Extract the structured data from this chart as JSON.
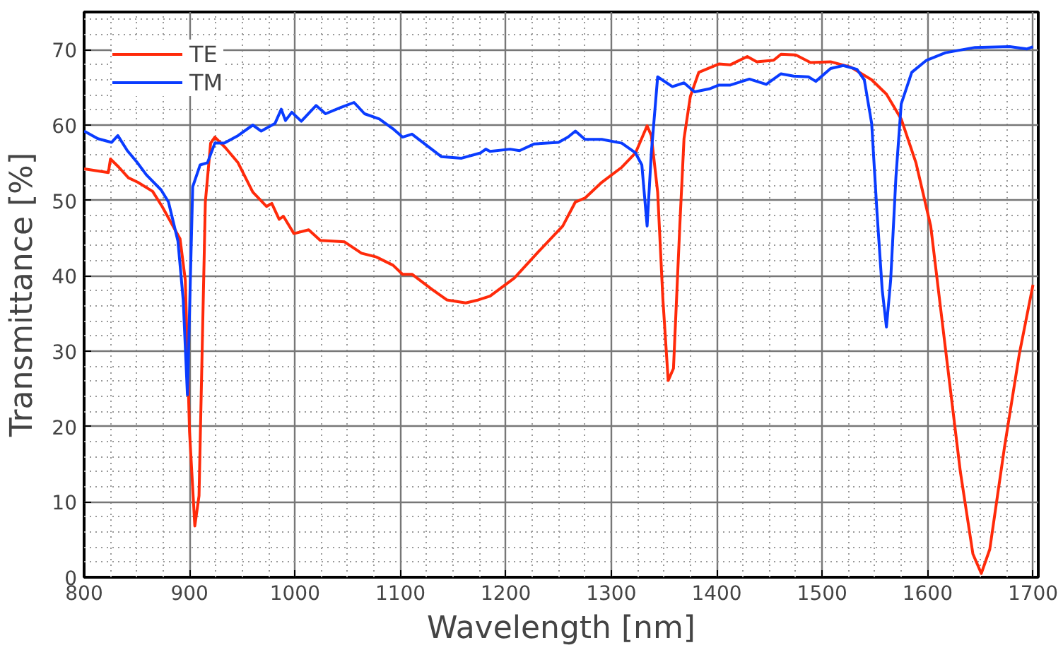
{
  "chart_data": {
    "type": "line",
    "xlabel": "Wavelength [nm]",
    "ylabel": "Transmittance [%]",
    "xlim": [
      800,
      1705
    ],
    "ylim": [
      0,
      75
    ],
    "xticks": [
      800,
      900,
      1000,
      1100,
      1200,
      1300,
      1400,
      1500,
      1600,
      1700
    ],
    "yticks": [
      0,
      10,
      20,
      30,
      40,
      50,
      60,
      70
    ],
    "grid": true,
    "legend": "top left",
    "marker": "none",
    "line_style": "solid",
    "series": [
      {
        "name": "TE",
        "color": "#ff2a0a",
        "x": [
          800,
          823,
          825,
          833,
          842,
          851,
          865,
          874,
          891,
          896,
          900,
          905,
          909,
          915,
          920,
          924,
          934,
          946,
          960,
          973,
          978,
          985,
          989,
          999,
          1013,
          1024,
          1047,
          1063,
          1077,
          1093,
          1102,
          1111,
          1130,
          1144,
          1162,
          1174,
          1185,
          1208,
          1231,
          1254,
          1266,
          1275,
          1291,
          1310,
          1323,
          1334,
          1338,
          1344,
          1349,
          1354,
          1359,
          1365,
          1369,
          1375,
          1383,
          1402,
          1413,
          1429,
          1438,
          1454,
          1461,
          1475,
          1489,
          1508,
          1527,
          1547,
          1561,
          1575,
          1589,
          1603,
          1617,
          1631,
          1643,
          1651,
          1659,
          1673,
          1687,
          1700
        ],
        "values": [
          54.2,
          53.7,
          55.5,
          54.4,
          53,
          52.4,
          51.2,
          49.2,
          44.9,
          39.4,
          19.3,
          6.8,
          10.8,
          49.8,
          57.6,
          58.4,
          57,
          55,
          51.1,
          49.2,
          49.6,
          47.5,
          47.9,
          45.6,
          46.1,
          44.7,
          44.5,
          43,
          42.5,
          41.4,
          40.2,
          40.2,
          38.2,
          36.8,
          36.4,
          36.8,
          37.3,
          39.7,
          43.2,
          46.6,
          49.8,
          50.3,
          52.4,
          54.4,
          56.3,
          59.9,
          58.6,
          51.1,
          36.8,
          26.1,
          27.7,
          46.6,
          58.2,
          63.8,
          67,
          68.1,
          68,
          69.1,
          68.4,
          68.6,
          69.4,
          69.3,
          68.3,
          68.4,
          67.7,
          66,
          64.1,
          60.8,
          55,
          46.6,
          30.3,
          14.1,
          3.1,
          0.5,
          3.7,
          17.3,
          29.6,
          38.8
        ]
      },
      {
        "name": "TM",
        "color": "#0a3cff",
        "x": [
          800,
          813,
          826,
          832,
          841,
          850,
          859,
          873,
          880,
          889,
          894,
          898,
          903,
          910,
          917,
          924,
          933,
          946,
          960,
          968,
          981,
          987,
          991,
          997,
          1006,
          1020,
          1029,
          1043,
          1056,
          1066,
          1080,
          1093,
          1102,
          1111,
          1125,
          1139,
          1158,
          1176,
          1181,
          1185,
          1204,
          1213,
          1227,
          1250,
          1259,
          1266,
          1275,
          1291,
          1310,
          1323,
          1329,
          1334,
          1338,
          1344,
          1358,
          1369,
          1379,
          1393,
          1402,
          1413,
          1431,
          1447,
          1461,
          1473,
          1487,
          1494,
          1508,
          1520,
          1533,
          1540,
          1547,
          1552,
          1557,
          1561,
          1565,
          1570,
          1575,
          1585,
          1599,
          1617,
          1645,
          1678,
          1694,
          1700
        ],
        "values": [
          59.2,
          58.2,
          57.7,
          58.6,
          56.6,
          55.1,
          53.4,
          51.4,
          49.8,
          44.6,
          36.8,
          24.2,
          51.8,
          54.7,
          55,
          57.6,
          57.6,
          58.6,
          60,
          59.2,
          60.2,
          62.1,
          60.6,
          61.7,
          60.5,
          62.6,
          61.5,
          62.3,
          63,
          61.5,
          60.8,
          59.5,
          58.4,
          58.8,
          57.3,
          55.8,
          55.6,
          56.3,
          56.8,
          56.5,
          56.8,
          56.6,
          57.5,
          57.7,
          58.4,
          59.2,
          58.1,
          58.1,
          57.6,
          56.3,
          54.7,
          46.6,
          56.3,
          66.4,
          65.1,
          65.6,
          64.4,
          64.8,
          65.3,
          65.3,
          66.1,
          65.4,
          66.8,
          66.5,
          66.4,
          65.8,
          67.5,
          67.9,
          67.4,
          66,
          60.2,
          48.5,
          38.1,
          33.2,
          39.4,
          53.1,
          62.8,
          67,
          68.6,
          69.6,
          70.3,
          70.4,
          70.1,
          70.4
        ]
      }
    ]
  }
}
